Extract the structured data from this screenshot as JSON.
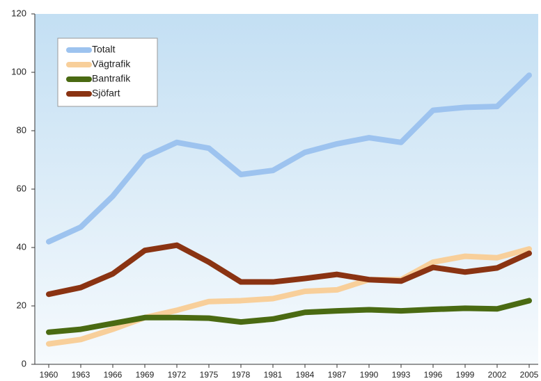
{
  "chart_data": {
    "type": "line",
    "categories": [
      "1960",
      "1963",
      "1966",
      "1969",
      "1972",
      "1975",
      "1978",
      "1981",
      "1984",
      "1987",
      "1990",
      "1993",
      "1996",
      "1999",
      "2002",
      "2005"
    ],
    "series": [
      {
        "name": "Totalt",
        "color": "#9dc3ef",
        "values": [
          42,
          47,
          57.6,
          71,
          76,
          74,
          65,
          66.4,
          72.6,
          75.5,
          77.6,
          76,
          87,
          88,
          88.3,
          99
        ]
      },
      {
        "name": "Vägtrafik",
        "color": "#f8cf9a",
        "values": [
          7,
          8.5,
          12,
          16,
          18.5,
          21.5,
          21.8,
          22.5,
          25,
          25.5,
          29,
          29,
          35,
          37,
          36.5,
          39.5
        ]
      },
      {
        "name": "Bantrafik",
        "color": "#4a6a12",
        "values": [
          11,
          12,
          14,
          16,
          16,
          15.8,
          14.5,
          15.5,
          17.8,
          18.3,
          18.7,
          18.3,
          18.8,
          19.2,
          19,
          21.8
        ]
      },
      {
        "name": "Sjöfart",
        "color": "#8a3312",
        "values": [
          24,
          26.3,
          31,
          39,
          40.8,
          35,
          28.2,
          28.2,
          29.4,
          30.8,
          29,
          28.5,
          33.2,
          31.6,
          33,
          38
        ]
      }
    ],
    "ylim": [
      0,
      120
    ],
    "yticks": [
      0,
      20,
      40,
      60,
      80,
      100,
      120
    ]
  }
}
